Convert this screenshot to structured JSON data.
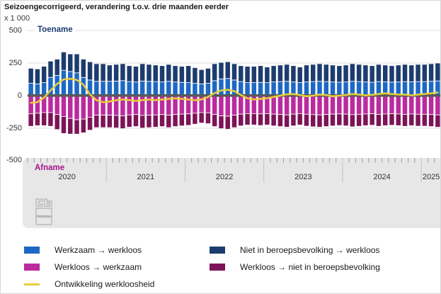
{
  "header": {
    "title": "Seizoengecorrigeerd, verandering t.o.v. drie maanden eerder",
    "unit": "x 1 000"
  },
  "colors": {
    "toename_text": "#1d3c6e",
    "afname_text": "#a3148c",
    "zero_line": "#58595a",
    "gridline": "#dcdcdc",
    "band_background": "#e7e7e7",
    "tick": "#9b9b9b",
    "year_separator": "#c2c2c2",
    "logo": "#b9b9b9"
  },
  "chart_data": {
    "type": "bar",
    "subtype": "stacked-bars-with-line",
    "title": "Seizoengecorrigeerd, verandering t.o.v. drie maanden eerder",
    "ylabel": "x 1 000",
    "ylim": [
      -500,
      500
    ],
    "grid": "horizontal",
    "legend_position": "bottom",
    "axis": {
      "toename_label": "Toename",
      "afname_label": "Afname",
      "yticks": [
        "500",
        "250",
        "0",
        "-250",
        "-500"
      ],
      "ytick_values": [
        500,
        250,
        0,
        -250,
        -500
      ],
      "years": [
        "2020",
        "2021",
        "2022",
        "2023",
        "2024",
        "2025"
      ],
      "months_per_year": [
        12,
        12,
        12,
        12,
        12,
        3
      ]
    },
    "series": [
      {
        "name": "Werkzaam → werkloos",
        "color": "#1e68c5",
        "stack": "positive",
        "values": [
          95,
          90,
          100,
          140,
          155,
          195,
          185,
          175,
          140,
          120,
          110,
          110,
          110,
          112,
          115,
          108,
          105,
          112,
          110,
          108,
          105,
          110,
          105,
          102,
          100,
          95,
          90,
          95,
          115,
          128,
          132,
          120,
          108,
          100,
          100,
          102,
          100,
          105,
          108,
          110,
          105,
          100,
          105,
          108,
          110,
          108,
          105,
          103,
          105,
          110,
          108,
          105,
          103,
          108,
          106,
          104,
          105,
          108,
          106,
          108,
          108,
          110,
          113
        ]
      },
      {
        "name": "Niet in beroepsbevolking → werkloos",
        "color": "#1d3c6e",
        "stack": "positive",
        "values": [
          115,
          115,
          125,
          125,
          125,
          140,
          135,
          145,
          140,
          140,
          135,
          135,
          125,
          128,
          130,
          122,
          120,
          133,
          130,
          127,
          125,
          130,
          125,
          123,
          130,
          120,
          110,
          115,
          130,
          127,
          128,
          125,
          122,
          125,
          125,
          128,
          120,
          125,
          127,
          130,
          125,
          120,
          130,
          132,
          135,
          132,
          130,
          127,
          130,
          135,
          132,
          130,
          127,
          132,
          129,
          126,
          130,
          132,
          129,
          132,
          132,
          135,
          137
        ]
      },
      {
        "name": "Werkloos → werkzaam",
        "color": "#bb2a9e",
        "stack": "negative",
        "values": [
          -140,
          -135,
          -130,
          -130,
          -145,
          -160,
          -175,
          -185,
          -180,
          -165,
          -150,
          -150,
          -150,
          -152,
          -155,
          -148,
          -145,
          -152,
          -150,
          -148,
          -145,
          -150,
          -145,
          -142,
          -140,
          -135,
          -130,
          -132,
          -145,
          -155,
          -158,
          -150,
          -142,
          -138,
          -138,
          -140,
          -138,
          -142,
          -145,
          -148,
          -142,
          -138,
          -143,
          -146,
          -148,
          -145,
          -142,
          -140,
          -142,
          -146,
          -144,
          -141,
          -139,
          -144,
          -141,
          -139,
          -141,
          -144,
          -141,
          -143,
          -143,
          -145,
          -148
        ]
      },
      {
        "name": "Werkloos → niet in beroepsbevolking",
        "color": "#7c1457",
        "stack": "negative",
        "values": [
          -95,
          -95,
          -100,
          -105,
          -115,
          -130,
          -120,
          -110,
          -105,
          -100,
          -95,
          -95,
          -95,
          -96,
          -98,
          -94,
          -92,
          -97,
          -95,
          -94,
          -92,
          -95,
          -92,
          -90,
          -88,
          -84,
          -80,
          -83,
          -92,
          -98,
          -100,
          -95,
          -90,
          -87,
          -87,
          -89,
          -87,
          -90,
          -92,
          -94,
          -90,
          -87,
          -91,
          -93,
          -94,
          -92,
          -90,
          -89,
          -90,
          -93,
          -91,
          -89,
          -88,
          -91,
          -89,
          -88,
          -89,
          -91,
          -89,
          -91,
          -91,
          -92,
          -94
        ]
      }
    ],
    "line": {
      "name": "Ontwikkeling werkloosheid",
      "color": "#e8cd3c",
      "values": [
        -55,
        -50,
        -15,
        40,
        90,
        125,
        130,
        120,
        85,
        10,
        -35,
        -50,
        -45,
        -35,
        -30,
        -35,
        -40,
        -35,
        -30,
        -35,
        -30,
        -25,
        -20,
        -25,
        -30,
        -35,
        -30,
        -10,
        20,
        40,
        45,
        35,
        5,
        -20,
        -30,
        -25,
        -20,
        -10,
        0,
        10,
        12,
        5,
        -5,
        0,
        8,
        5,
        -5,
        0,
        5,
        12,
        8,
        2,
        6,
        12,
        18,
        12,
        8,
        8,
        2,
        8,
        12,
        18,
        25
      ]
    }
  },
  "legend": {
    "items": [
      {
        "label": "Werkzaam → werkloos",
        "color": "#1e68c5",
        "type": "box"
      },
      {
        "label": "Werkloos → werkzaam",
        "color": "#bb2a9e",
        "type": "box"
      },
      {
        "label": "Ontwikkeling werkloosheid",
        "color": "#e8cd3c",
        "type": "line"
      },
      {
        "label": "Niet in beroepsbevolking → werkloos",
        "color": "#1d3c6e",
        "type": "box"
      },
      {
        "label": "Werkloos → niet in beroepsbevolking",
        "color": "#7c1457",
        "type": "box"
      }
    ]
  }
}
